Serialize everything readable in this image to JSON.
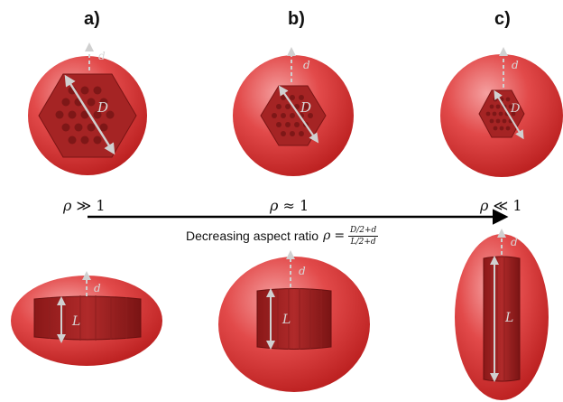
{
  "panels": [
    {
      "label": "a)",
      "rho": "≫",
      "top_D": "D",
      "top_d": "d",
      "side_L": "L",
      "side_d": "d"
    },
    {
      "label": "b)",
      "rho": "≈",
      "top_D": "D",
      "top_d": "d",
      "side_L": "L",
      "side_d": "d"
    },
    {
      "label": "c)",
      "rho": "≪",
      "top_D": "D",
      "top_d": "d",
      "side_L": "L",
      "side_d": "d"
    }
  ],
  "rho_symbol": "ρ",
  "rho_value": "1",
  "caption": {
    "text": "Decreasing aspect ratio",
    "symbol": "ρ",
    "equals": "=",
    "numerator": "D/2+d",
    "denominator": "L/2+d"
  },
  "colors": {
    "sphere_light": "#f07a7a",
    "sphere_base": "#e03c3c",
    "sphere_dark": "#b81c1c",
    "crystal": "#a52424",
    "crystal_dark": "#7a1414",
    "arrow": "#d0d0d0",
    "axis_arrow": "#000000"
  }
}
